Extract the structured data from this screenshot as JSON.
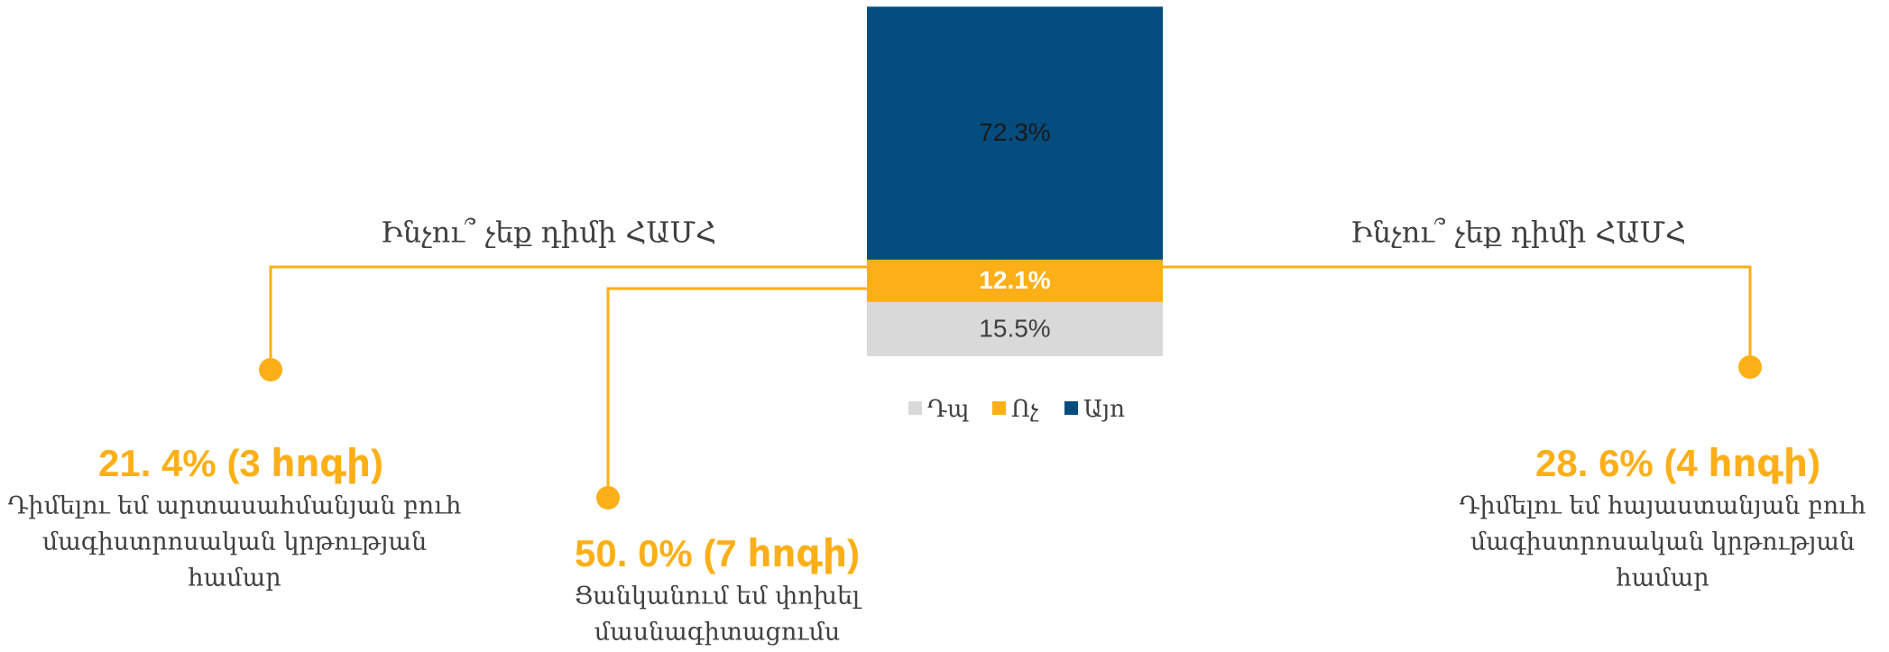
{
  "chart_data": {
    "type": "bar",
    "stacked": true,
    "series": [
      {
        "name": "Դպ",
        "color": "#d9d9d9",
        "values": [
          15.5
        ],
        "value_labels": [
          "15.5%"
        ],
        "label_color": "#404040"
      },
      {
        "name": "Ոչ",
        "color": "#fdaf17",
        "values": [
          12.1
        ],
        "value_labels": [
          "12.1%"
        ],
        "label_color": "#ffffff"
      },
      {
        "name": "Այո",
        "color": "#044c7e",
        "values": [
          72.3
        ],
        "value_labels": [
          "72.3%"
        ],
        "label_color": "#1a1a1a"
      }
    ],
    "ylim": [
      0,
      100
    ]
  },
  "callouts": [
    {
      "title": "Ինչու՞ չեք դիմի ՀԱՄՀ",
      "headline": "21. 4% (3 հոգի)",
      "lines": [
        "Դիմելու եմ արտասահմանյան բուհ",
        "մագիստրոսական կրթության",
        "համար"
      ]
    },
    {
      "headline": "50. 0% (7 հոգի)",
      "lines": [
        "Ցանկանում եմ փոխել",
        "մասնագիտացումս"
      ]
    },
    {
      "title": "Ինչու՞ չեք դիմի ՀԱՄՀ",
      "headline": "28. 6% (4 հոգի)",
      "lines": [
        "Դիմելու եմ հայաստանյան բուհ",
        "մագիստրոսական կրթության",
        "համար"
      ]
    }
  ]
}
